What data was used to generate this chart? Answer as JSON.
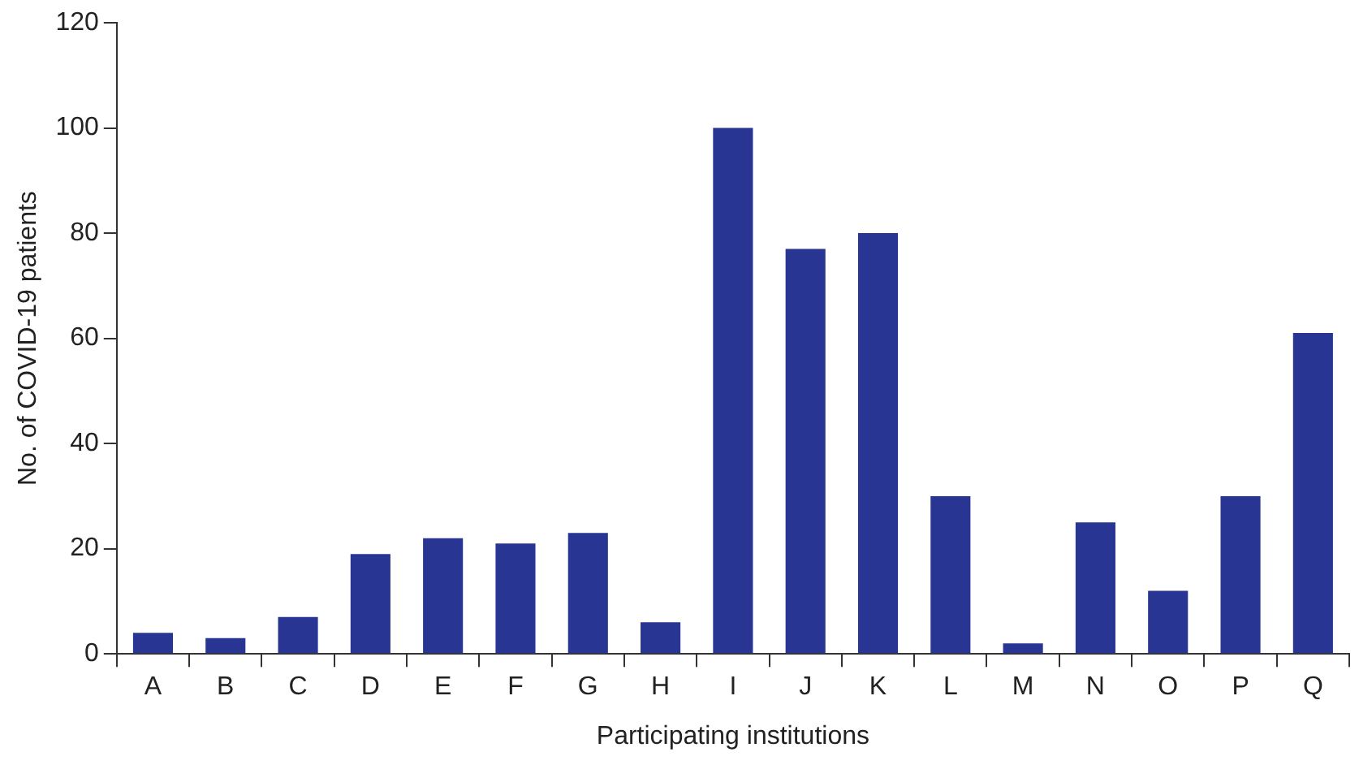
{
  "chart_data": {
    "type": "bar",
    "xlabel": "Participating institutions",
    "ylabel": "No. of COVID-19 patients",
    "categories": [
      "A",
      "B",
      "C",
      "D",
      "E",
      "F",
      "G",
      "H",
      "I",
      "J",
      "K",
      "L",
      "M",
      "N",
      "O",
      "P",
      "Q"
    ],
    "values": [
      4,
      3,
      7,
      19,
      22,
      21,
      23,
      6,
      100,
      77,
      80,
      30,
      2,
      25,
      12,
      30,
      61
    ],
    "color": "#283593",
    "ylim": [
      0,
      120
    ],
    "yticks": [
      0,
      20,
      40,
      60,
      80,
      100,
      120
    ]
  }
}
